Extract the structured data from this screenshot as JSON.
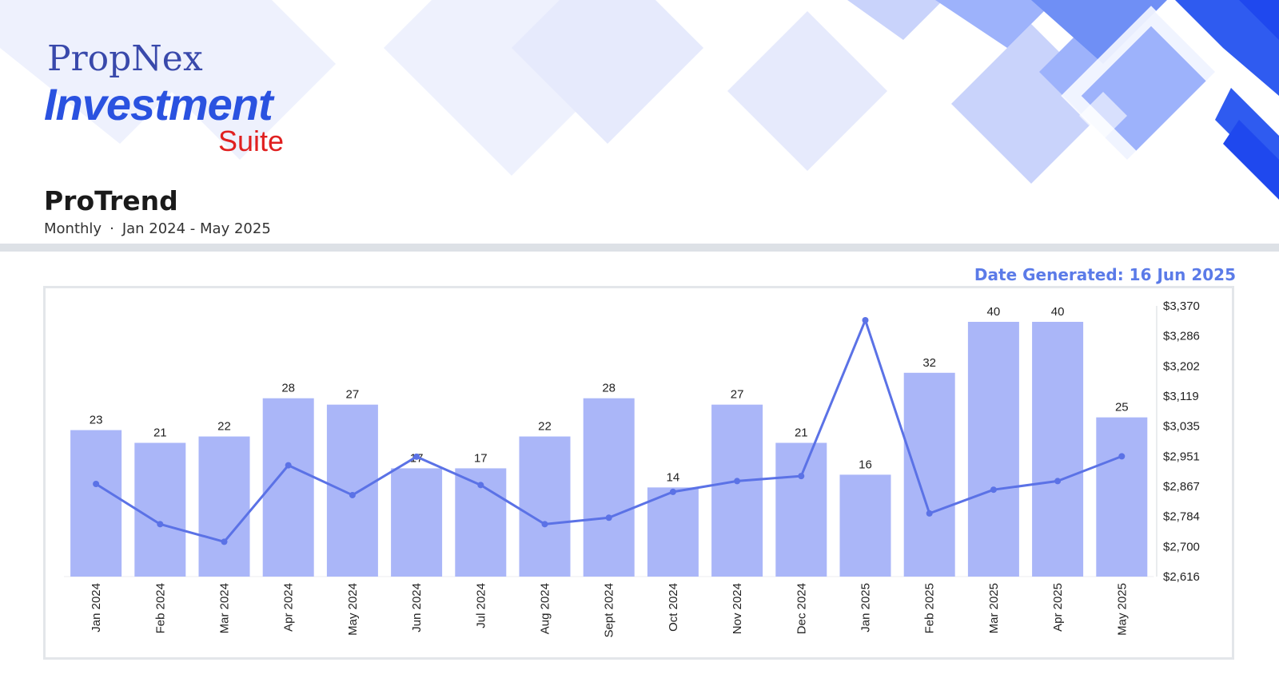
{
  "brand": {
    "name_top": "PropNex",
    "name_mid": "Investment",
    "name_bottom": "Suite"
  },
  "report": {
    "title": "ProTrend",
    "frequency": "Monthly",
    "separator": "·",
    "period": "Jan 2024 - May 2025",
    "date_generated": "Date Generated: 16 Jun 2025"
  },
  "colors": {
    "bar": "#aab6f8",
    "line": "#5b72e6",
    "accent": "#5b7be8",
    "logo_blue": "#2a52e0",
    "logo_red": "#e02020"
  },
  "chart_data": {
    "type": "bar",
    "categories": [
      "Jan 2024",
      "Feb 2024",
      "Mar 2024",
      "Apr 2024",
      "May 2024",
      "Jun 2024",
      "Jul 2024",
      "Aug 2024",
      "Sept 2024",
      "Oct 2024",
      "Nov 2024",
      "Dec 2024",
      "Jan 2025",
      "Feb 2025",
      "Mar 2025",
      "Apr 2025",
      "May 2025"
    ],
    "series": [
      {
        "type": "bar",
        "axis": "left",
        "values": [
          23,
          21,
          22,
          28,
          27,
          17,
          17,
          22,
          28,
          14,
          27,
          21,
          16,
          32,
          40,
          40,
          25
        ]
      },
      {
        "type": "line",
        "axis": "right",
        "values": [
          2874,
          2762,
          2713,
          2926,
          2843,
          2950,
          2871,
          2762,
          2780,
          2852,
          2882,
          2896,
          3330,
          2792,
          2858,
          2882,
          2951
        ]
      }
    ],
    "y_left": {
      "range": [
        0,
        40
      ],
      "visible": false
    },
    "y_right": {
      "range": [
        2616,
        3370
      ],
      "ticks": [
        "$2,616",
        "$2,700",
        "$2,784",
        "$2,867",
        "$2,951",
        "$3,035",
        "$3,119",
        "$3,202",
        "$3,286",
        "$3,370"
      ]
    },
    "data_labels": true,
    "grid": false,
    "legend": "none"
  }
}
